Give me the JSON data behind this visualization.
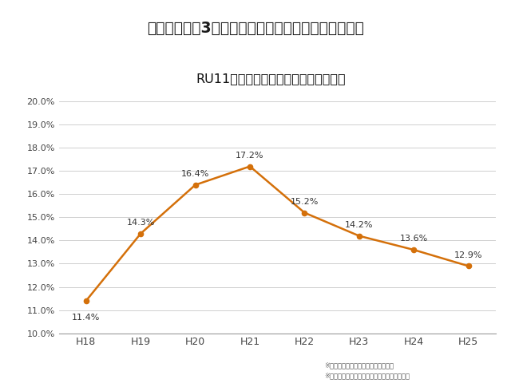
{
  "title": "RU11間接経費率の推移（国立大のみ）",
  "header_text": "間接経費率は3割に届かず、むしろ減少傾向にある。",
  "x_labels": [
    "H18",
    "H19",
    "H20",
    "H21",
    "H22",
    "H23",
    "H24",
    "H25"
  ],
  "y_values": [
    11.4,
    14.3,
    16.4,
    17.2,
    15.2,
    14.2,
    13.6,
    12.9
  ],
  "y_labels": [
    "10.0%",
    "11.0%",
    "12.0%",
    "13.0%",
    "14.0%",
    "15.0%",
    "16.0%",
    "17.0%",
    "18.0%",
    "19.0%",
    "20.0%"
  ],
  "y_min": 10.0,
  "y_max": 20.0,
  "y_ticks": [
    10.0,
    11.0,
    12.0,
    13.0,
    14.0,
    15.0,
    16.0,
    17.0,
    18.0,
    19.0,
    20.0
  ],
  "line_color": "#D4700A",
  "marker_color": "#D4700A",
  "header_bg_color": "#8A9FC0",
  "chart_bg_color": "#FFFFFF",
  "footer_line1": "※早稲田大学、慶應義塾大学を除く。",
  "footer_line2": "※間接経費の額を直接経費の額で除して算出。",
  "data_labels": [
    "11.4%",
    "14.3%",
    "16.4%",
    "17.2%",
    "15.2%",
    "14.2%",
    "13.6%",
    "12.9%"
  ],
  "label_offsets_y": [
    -0.55,
    0.3,
    0.3,
    0.3,
    0.3,
    0.3,
    0.3,
    0.3
  ]
}
